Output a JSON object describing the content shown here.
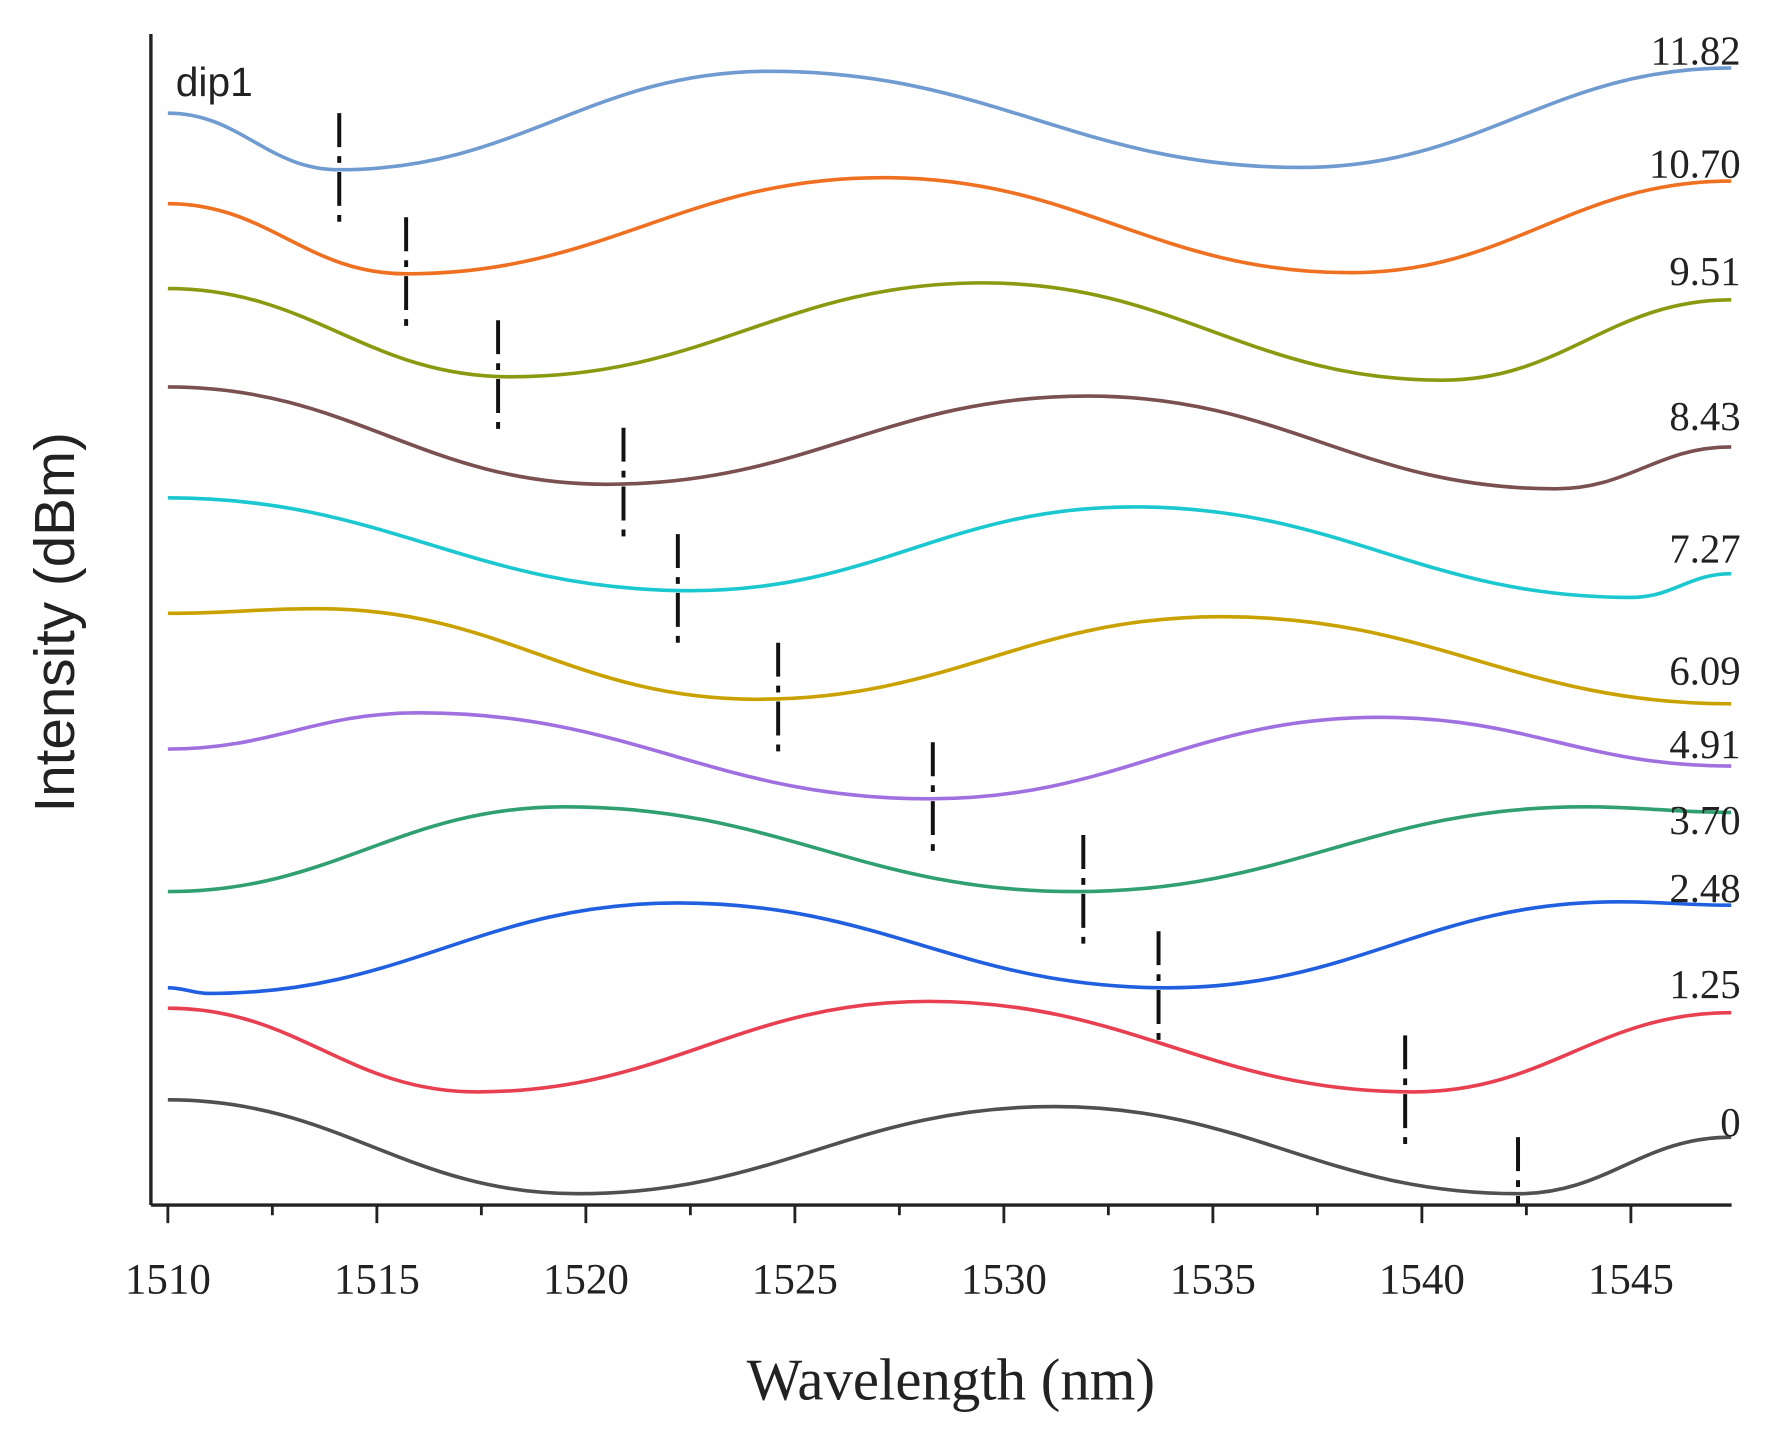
{
  "chart_data": {
    "type": "line",
    "title": "",
    "xlabel": "Wavelength (nm)",
    "ylabel": "Intensity (dBm)",
    "xlim": [
      1510,
      1547.4
    ],
    "ylim": [
      0,
      103.5
    ],
    "y_units_note": "a.u. (vertically offset curves, no y ticks)",
    "x_ticks": [
      1510,
      1515,
      1520,
      1525,
      1530,
      1535,
      1540,
      1545
    ],
    "x_tick_labels": [
      "1510",
      "1515",
      "1520",
      "1525",
      "1530",
      "1535",
      "1540",
      "1545"
    ],
    "annotation": "dip1",
    "grid": false,
    "series": [
      {
        "name": "11.82",
        "color": "#6f9bd1",
        "dip1": 1514.1,
        "points": [
          [
            1510,
            96.5
          ],
          [
            1514.1,
            91.5
          ],
          [
            1524.4,
            100.2
          ],
          [
            1537.1,
            91.7
          ],
          [
            1547.4,
            100.5
          ]
        ]
      },
      {
        "name": "10.70",
        "color": "#f07022",
        "dip1": 1515.7,
        "points": [
          [
            1510,
            88.5
          ],
          [
            1515.7,
            82.3
          ],
          [
            1527.1,
            90.8
          ],
          [
            1538.3,
            82.4
          ],
          [
            1547.4,
            90.5
          ]
        ]
      },
      {
        "name": "9.51",
        "color": "#8a9a10",
        "dip1": 1517.9,
        "points": [
          [
            1510,
            81.0
          ],
          [
            1518.2,
            73.2
          ],
          [
            1529.5,
            81.5
          ],
          [
            1540.5,
            72.9
          ],
          [
            1547.4,
            80.0
          ]
        ]
      },
      {
        "name": "8.43",
        "color": "#7a5050",
        "dip1": 1520.9,
        "points": [
          [
            1510,
            72.3
          ],
          [
            1520.5,
            63.7
          ],
          [
            1532.0,
            71.5
          ],
          [
            1543.2,
            63.3
          ],
          [
            1547.4,
            67.0
          ]
        ]
      },
      {
        "name": "7.27",
        "color": "#1cc8d0",
        "dip1": 1522.2,
        "points": [
          [
            1510,
            62.5
          ],
          [
            1522.5,
            54.3
          ],
          [
            1533.1,
            61.7
          ],
          [
            1545.0,
            53.7
          ],
          [
            1547.4,
            55.8
          ]
        ]
      },
      {
        "name": "6.09",
        "color": "#c9a200",
        "dip1": 1524.6,
        "points": [
          [
            1510,
            52.3
          ],
          [
            1513.6,
            52.7
          ],
          [
            1524.1,
            44.7
          ],
          [
            1535.2,
            52.0
          ],
          [
            1547.4,
            44.3
          ]
        ]
      },
      {
        "name": "4.91",
        "color": "#a070e0",
        "dip1": 1528.3,
        "points": [
          [
            1510,
            40.3
          ],
          [
            1516.0,
            43.5
          ],
          [
            1528.2,
            35.9
          ],
          [
            1539.0,
            43.1
          ],
          [
            1547.4,
            38.8
          ]
        ]
      },
      {
        "name": "3.70",
        "color": "#30a070",
        "dip1": 1531.9,
        "points": [
          [
            1510,
            27.7
          ],
          [
            1519.5,
            35.2
          ],
          [
            1531.7,
            27.7
          ],
          [
            1543.9,
            35.2
          ],
          [
            1547.4,
            34.7
          ]
        ]
      },
      {
        "name": "2.48",
        "color": "#2060e0",
        "dip1": 1533.7,
        "points": [
          [
            1510,
            19.2
          ],
          [
            1511.0,
            18.7
          ],
          [
            1522.2,
            26.7
          ],
          [
            1533.9,
            19.2
          ],
          [
            1544.7,
            26.8
          ],
          [
            1547.4,
            26.5
          ]
        ]
      },
      {
        "name": "1.25",
        "color": "#e84050",
        "dip1": 1539.6,
        "points": [
          [
            1510,
            17.4
          ],
          [
            1517.4,
            10.0
          ],
          [
            1528.2,
            18.0
          ],
          [
            1539.8,
            10.0
          ],
          [
            1547.4,
            17.0
          ]
        ]
      },
      {
        "name": "0",
        "color": "#505050",
        "dip1": 1542.3,
        "points": [
          [
            1510,
            9.3
          ],
          [
            1519.8,
            1.0
          ],
          [
            1531.2,
            8.7
          ],
          [
            1542.3,
            1.0
          ],
          [
            1547.4,
            6.0
          ]
        ]
      }
    ]
  }
}
